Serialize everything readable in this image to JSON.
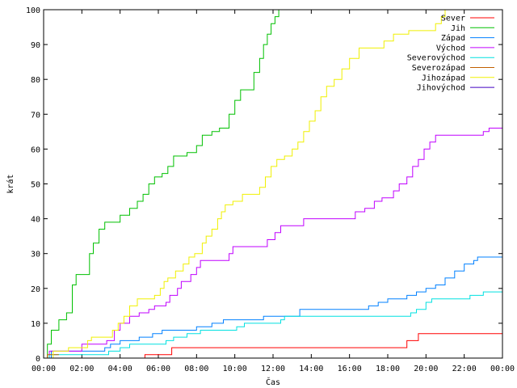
{
  "chart_data": {
    "type": "line",
    "xlabel": "Čas",
    "ylabel": "krát",
    "xlim": [
      0,
      24
    ],
    "ylim": [
      0,
      100
    ],
    "x_ticks": [
      0,
      2,
      4,
      6,
      8,
      10,
      12,
      14,
      16,
      18,
      20,
      22,
      24
    ],
    "x_tick_labels": [
      "00:00",
      "02:00",
      "04:00",
      "06:00",
      "08:00",
      "10:00",
      "12:00",
      "14:00",
      "16:00",
      "18:00",
      "20:00",
      "22:00",
      "00:00"
    ],
    "y_ticks": [
      0,
      10,
      20,
      30,
      40,
      50,
      60,
      70,
      80,
      90,
      100
    ],
    "y_tick_labels": [
      "0",
      "10",
      "20",
      "30",
      "40",
      "50",
      "60",
      "70",
      "80",
      "90",
      "100"
    ],
    "legend_position": "top-right",
    "series": [
      {
        "name": "Sever",
        "color": "#ff0000",
        "points": [
          [
            5.0,
            0
          ],
          [
            5.3,
            1
          ],
          [
            6.7,
            3
          ],
          [
            8.0,
            3
          ],
          [
            12.0,
            3
          ],
          [
            16.0,
            3
          ],
          [
            18.9,
            3
          ],
          [
            19.0,
            5
          ],
          [
            19.6,
            7
          ],
          [
            21.0,
            7
          ],
          [
            24.0,
            7
          ]
        ]
      },
      {
        "name": "Jih",
        "color": "#00c000",
        "points": [
          [
            0.0,
            0
          ],
          [
            0.2,
            4
          ],
          [
            0.4,
            8
          ],
          [
            0.8,
            11
          ],
          [
            1.2,
            13
          ],
          [
            1.5,
            21
          ],
          [
            1.7,
            24
          ],
          [
            2.2,
            24
          ],
          [
            2.4,
            30
          ],
          [
            2.6,
            33
          ],
          [
            2.9,
            37
          ],
          [
            3.2,
            39
          ],
          [
            3.8,
            39
          ],
          [
            4.0,
            41
          ],
          [
            4.3,
            41
          ],
          [
            4.5,
            43
          ],
          [
            4.9,
            45
          ],
          [
            5.2,
            47
          ],
          [
            5.5,
            50
          ],
          [
            5.8,
            52
          ],
          [
            6.2,
            53
          ],
          [
            6.5,
            55
          ],
          [
            6.8,
            58
          ],
          [
            7.3,
            58
          ],
          [
            7.5,
            59
          ],
          [
            7.9,
            59
          ],
          [
            8.0,
            61
          ],
          [
            8.3,
            64
          ],
          [
            8.8,
            65
          ],
          [
            9.2,
            66
          ],
          [
            9.5,
            66
          ],
          [
            9.7,
            70
          ],
          [
            10.0,
            74
          ],
          [
            10.3,
            77
          ],
          [
            10.7,
            77
          ],
          [
            11.0,
            82
          ],
          [
            11.3,
            86
          ],
          [
            11.5,
            90
          ],
          [
            11.7,
            93
          ],
          [
            11.9,
            96
          ],
          [
            12.1,
            98
          ],
          [
            12.3,
            100
          ]
        ]
      },
      {
        "name": "Západ",
        "color": "#0080ff",
        "points": [
          [
            0.2,
            0
          ],
          [
            0.4,
            2
          ],
          [
            1.4,
            2
          ],
          [
            3.0,
            2
          ],
          [
            3.2,
            3
          ],
          [
            3.5,
            4
          ],
          [
            4.0,
            5
          ],
          [
            5.0,
            6
          ],
          [
            5.7,
            7
          ],
          [
            6.2,
            8
          ],
          [
            7.5,
            8
          ],
          [
            8.0,
            9
          ],
          [
            8.5,
            9
          ],
          [
            8.8,
            10
          ],
          [
            9.4,
            11
          ],
          [
            11.3,
            11
          ],
          [
            11.5,
            12
          ],
          [
            13.3,
            12
          ],
          [
            13.4,
            14
          ],
          [
            16.7,
            14
          ],
          [
            17.0,
            15
          ],
          [
            17.5,
            16
          ],
          [
            18.0,
            17
          ],
          [
            18.8,
            17
          ],
          [
            19.0,
            18
          ],
          [
            19.5,
            19
          ],
          [
            20.0,
            20
          ],
          [
            20.5,
            21
          ],
          [
            21.0,
            23
          ],
          [
            21.5,
            25
          ],
          [
            22.0,
            27
          ],
          [
            22.5,
            28
          ],
          [
            22.7,
            29
          ],
          [
            24.0,
            29
          ]
        ]
      },
      {
        "name": "Východ",
        "color": "#c000ff",
        "points": [
          [
            0.2,
            0
          ],
          [
            0.3,
            2
          ],
          [
            1.6,
            2
          ],
          [
            2.0,
            4
          ],
          [
            3.0,
            4
          ],
          [
            3.3,
            5
          ],
          [
            3.7,
            8
          ],
          [
            4.0,
            10
          ],
          [
            4.5,
            12
          ],
          [
            5.0,
            13
          ],
          [
            5.5,
            14
          ],
          [
            5.8,
            15
          ],
          [
            6.4,
            16
          ],
          [
            6.6,
            18
          ],
          [
            7.0,
            20
          ],
          [
            7.2,
            22
          ],
          [
            7.6,
            22
          ],
          [
            7.7,
            24
          ],
          [
            8.0,
            26
          ],
          [
            8.2,
            28
          ],
          [
            9.5,
            28
          ],
          [
            9.7,
            30
          ],
          [
            9.9,
            32
          ],
          [
            11.2,
            32
          ],
          [
            11.7,
            34
          ],
          [
            12.1,
            36
          ],
          [
            12.4,
            38
          ],
          [
            13.0,
            38
          ],
          [
            13.6,
            40
          ],
          [
            16.0,
            40
          ],
          [
            16.3,
            42
          ],
          [
            16.8,
            43
          ],
          [
            17.3,
            45
          ],
          [
            17.7,
            46
          ],
          [
            18.3,
            48
          ],
          [
            18.6,
            50
          ],
          [
            19.0,
            52
          ],
          [
            19.3,
            55
          ],
          [
            19.6,
            57
          ],
          [
            19.9,
            60
          ],
          [
            20.2,
            62
          ],
          [
            20.5,
            64
          ],
          [
            22.5,
            64
          ],
          [
            23.0,
            65
          ],
          [
            23.3,
            66
          ],
          [
            24.0,
            66
          ]
        ]
      },
      {
        "name": "Severovýchod",
        "color": "#00e0e0",
        "points": [
          [
            0.2,
            0
          ],
          [
            0.3,
            1
          ],
          [
            3.0,
            1
          ],
          [
            3.4,
            2
          ],
          [
            4.0,
            3
          ],
          [
            4.5,
            4
          ],
          [
            6.2,
            4
          ],
          [
            6.4,
            5
          ],
          [
            6.8,
            6
          ],
          [
            7.5,
            7
          ],
          [
            8.2,
            8
          ],
          [
            9.5,
            8
          ],
          [
            10.1,
            9
          ],
          [
            10.5,
            10
          ],
          [
            12.1,
            10
          ],
          [
            12.4,
            11
          ],
          [
            12.6,
            12
          ],
          [
            19.0,
            12
          ],
          [
            19.2,
            13
          ],
          [
            19.5,
            14
          ],
          [
            20.0,
            16
          ],
          [
            20.3,
            17
          ],
          [
            22.0,
            17
          ],
          [
            22.3,
            18
          ],
          [
            23.0,
            19
          ],
          [
            24.0,
            19
          ]
        ]
      },
      {
        "name": "Severozápad",
        "color": "#c06000",
        "points": [
          [
            0.0,
            0
          ],
          [
            0.2,
            1
          ],
          [
            0.8,
            1
          ]
        ]
      },
      {
        "name": "Jihozápad",
        "color": "#f0f000",
        "points": [
          [
            0.0,
            0
          ],
          [
            0.5,
            2
          ],
          [
            1.0,
            2
          ],
          [
            1.3,
            3
          ],
          [
            2.0,
            3
          ],
          [
            2.3,
            5
          ],
          [
            2.5,
            6
          ],
          [
            3.3,
            6
          ],
          [
            3.6,
            8
          ],
          [
            3.9,
            10
          ],
          [
            4.2,
            12
          ],
          [
            4.5,
            15
          ],
          [
            4.9,
            17
          ],
          [
            5.6,
            17
          ],
          [
            5.8,
            18
          ],
          [
            6.1,
            20
          ],
          [
            6.3,
            22
          ],
          [
            6.5,
            23
          ],
          [
            6.9,
            25
          ],
          [
            7.3,
            27
          ],
          [
            7.6,
            29
          ],
          [
            7.9,
            30
          ],
          [
            8.3,
            33
          ],
          [
            8.5,
            35
          ],
          [
            8.8,
            37
          ],
          [
            9.1,
            40
          ],
          [
            9.3,
            42
          ],
          [
            9.5,
            44
          ],
          [
            9.9,
            45
          ],
          [
            10.4,
            47
          ],
          [
            11.0,
            47
          ],
          [
            11.3,
            49
          ],
          [
            11.6,
            52
          ],
          [
            11.9,
            55
          ],
          [
            12.2,
            57
          ],
          [
            12.6,
            58
          ],
          [
            13.0,
            60
          ],
          [
            13.3,
            62
          ],
          [
            13.6,
            65
          ],
          [
            13.9,
            68
          ],
          [
            14.2,
            71
          ],
          [
            14.5,
            75
          ],
          [
            14.8,
            78
          ],
          [
            15.2,
            80
          ],
          [
            15.6,
            83
          ],
          [
            16.0,
            86
          ],
          [
            16.5,
            89
          ],
          [
            17.5,
            89
          ],
          [
            17.8,
            91
          ],
          [
            18.3,
            93
          ],
          [
            18.8,
            93
          ],
          [
            19.1,
            94
          ],
          [
            20.0,
            94
          ],
          [
            20.5,
            96
          ],
          [
            20.8,
            98
          ],
          [
            21.0,
            100
          ]
        ]
      },
      {
        "name": "Jihovýchod",
        "color": "#4000c0",
        "points": []
      }
    ]
  }
}
